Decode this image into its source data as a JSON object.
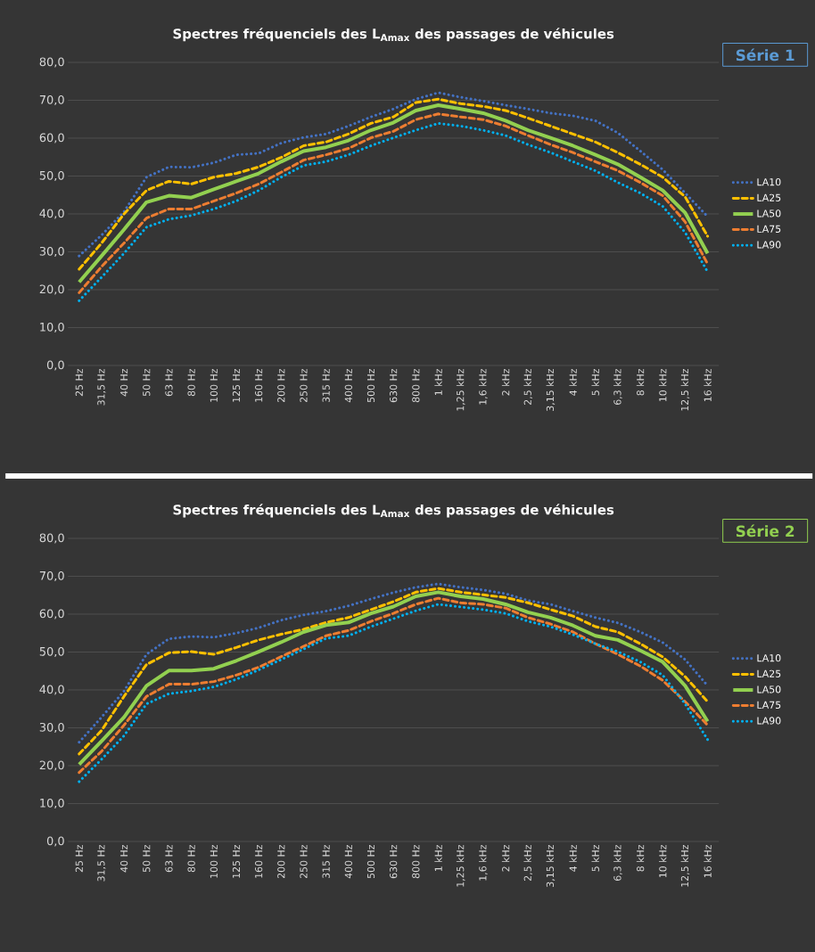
{
  "chart_data": [
    {
      "type": "line",
      "title": "Spectres fréquenciels des L$_{Amax}$ des passages de véhicules",
      "categories": [
        "25 Hz",
        "31,5 Hz",
        "40 Hz",
        "50 Hz",
        "63 Hz",
        "80 Hz",
        "100 Hz",
        "125 Hz",
        "160 Hz",
        "200 Hz",
        "250 Hz",
        "315 Hz",
        "400 Hz",
        "500 Hz",
        "630 Hz",
        "800 Hz",
        "1 kHz",
        "1,25 kHz",
        "1,6 kHz",
        "2 kHz",
        "2,5 kHz",
        "3,15 kHz",
        "4 kHz",
        "5 kHz",
        "6,3 kHz",
        "8 kHz",
        "10 kHz",
        "12,5 kHz",
        "16 kHz"
      ],
      "ylim": [
        0,
        80
      ],
      "yticks": [
        {
          "value": 0,
          "label": "0,0"
        },
        {
          "value": 10,
          "label": "10,0"
        },
        {
          "value": 20,
          "label": "20,0"
        },
        {
          "value": 30,
          "label": "30,0"
        },
        {
          "value": 40,
          "label": "40,0"
        },
        {
          "value": 50,
          "label": "50,0"
        },
        {
          "value": 60,
          "label": "60,0"
        },
        {
          "value": 70,
          "label": "70,0"
        },
        {
          "value": 80,
          "label": "80,0"
        }
      ],
      "grid": "y",
      "legend": "right",
      "annotations": [
        "Série 1"
      ],
      "series": [
        {
          "name": "LA10",
          "color": "#4472c4",
          "line_style": "dotted",
          "values": [
            28.9,
            34.4,
            40.6,
            49.7,
            52.4,
            52.3,
            53.5,
            55.6,
            56.0,
            58.7,
            60.2,
            61.1,
            63.2,
            65.6,
            67.7,
            70.3,
            72.0,
            70.8,
            69.8,
            68.7,
            67.7,
            66.6,
            65.9,
            64.6,
            61.4,
            56.6,
            51.7,
            45.5,
            39.3
          ]
        },
        {
          "name": "LA25",
          "color": "#ffc000",
          "line_style": "dashed",
          "values": [
            25.4,
            32.3,
            40.0,
            46.2,
            48.6,
            47.9,
            49.7,
            50.7,
            52.4,
            54.9,
            58.0,
            59.0,
            61.1,
            63.9,
            65.6,
            69.4,
            70.3,
            69.1,
            68.4,
            67.3,
            65.3,
            63.2,
            61.1,
            59.0,
            56.2,
            53.1,
            49.7,
            44.5,
            34.1
          ]
        },
        {
          "name": "LA50",
          "color": "#92d050",
          "line_style": "solid",
          "values": [
            22.0,
            28.9,
            35.9,
            43.1,
            44.8,
            44.3,
            46.5,
            48.6,
            50.7,
            53.8,
            56.6,
            57.6,
            59.4,
            62.1,
            64.1,
            67.3,
            68.7,
            67.7,
            66.6,
            64.6,
            62.1,
            60.1,
            58.0,
            55.6,
            53.1,
            49.7,
            46.2,
            40.3,
            29.6
          ]
        },
        {
          "name": "LA75",
          "color": "#ed7d31",
          "line_style": "dashed",
          "values": [
            19.2,
            26.1,
            32.3,
            38.9,
            41.3,
            41.3,
            43.4,
            45.5,
            47.9,
            51.0,
            54.2,
            55.6,
            57.3,
            60.1,
            61.8,
            64.9,
            66.4,
            65.6,
            64.9,
            63.2,
            60.7,
            58.3,
            56.2,
            53.8,
            51.4,
            48.3,
            44.8,
            37.9,
            26.8
          ]
        },
        {
          "name": "LA90",
          "color": "#00b0f0",
          "line_style": "dotted",
          "values": [
            17.1,
            23.3,
            29.6,
            36.5,
            38.6,
            39.6,
            41.3,
            43.4,
            46.2,
            49.7,
            52.8,
            53.8,
            55.6,
            58.0,
            60.1,
            62.1,
            63.9,
            63.2,
            62.1,
            60.7,
            58.3,
            56.2,
            53.8,
            51.4,
            48.3,
            45.5,
            42.0,
            35.1,
            24.7
          ]
        }
      ]
    },
    {
      "type": "line",
      "title": "Spectres fréquenciels des L$_{Amax}$ des passages de véhicules",
      "categories": [
        "25 Hz",
        "31,5 Hz",
        "40 Hz",
        "50 Hz",
        "63 Hz",
        "80 Hz",
        "100 Hz",
        "125 Hz",
        "160 Hz",
        "200 Hz",
        "250 Hz",
        "315 Hz",
        "400 Hz",
        "500 Hz",
        "630 Hz",
        "800 Hz",
        "1 kHz",
        "1,25 kHz",
        "1,6 kHz",
        "2 kHz",
        "2,5 kHz",
        "3,15 kHz",
        "4 kHz",
        "5 kHz",
        "6,3 kHz",
        "8 kHz",
        "10 kHz",
        "12,5 kHz",
        "16 kHz"
      ],
      "ylim": [
        0,
        80
      ],
      "yticks": [
        {
          "value": 0,
          "label": "0,0"
        },
        {
          "value": 10,
          "label": "10,0"
        },
        {
          "value": 20,
          "label": "20,0"
        },
        {
          "value": 30,
          "label": "30,0"
        },
        {
          "value": 40,
          "label": "40,0"
        },
        {
          "value": 50,
          "label": "50,0"
        },
        {
          "value": 60,
          "label": "60,0"
        },
        {
          "value": 70,
          "label": "70,0"
        },
        {
          "value": 80,
          "label": "80,0"
        }
      ],
      "grid": "y",
      "legend": "right",
      "annotations": [
        "Série 2"
      ],
      "series": [
        {
          "name": "LA10",
          "color": "#4472c4",
          "line_style": "dotted",
          "values": [
            26.2,
            32.8,
            39.7,
            49.4,
            53.5,
            54.1,
            53.9,
            55.0,
            56.4,
            58.4,
            59.8,
            60.8,
            62.2,
            64.0,
            65.7,
            67.1,
            68.0,
            67.1,
            66.4,
            65.4,
            63.6,
            62.6,
            60.8,
            59.1,
            57.7,
            55.3,
            52.5,
            48.0,
            41.1
          ]
        },
        {
          "name": "LA25",
          "color": "#ffc000",
          "line_style": "dashed",
          "values": [
            23.1,
            29.3,
            38.3,
            46.7,
            49.8,
            50.1,
            49.4,
            51.2,
            53.2,
            54.7,
            56.0,
            57.8,
            59.1,
            61.2,
            63.3,
            65.8,
            66.8,
            65.8,
            65.1,
            64.4,
            63.0,
            61.2,
            59.5,
            56.7,
            55.3,
            52.2,
            48.7,
            43.5,
            36.9
          ]
        },
        {
          "name": "LA50",
          "color": "#92d050",
          "line_style": "solid",
          "values": [
            20.3,
            26.5,
            32.8,
            41.1,
            45.1,
            45.1,
            45.6,
            47.7,
            50.1,
            52.6,
            55.3,
            57.1,
            57.8,
            60.2,
            62.0,
            64.7,
            65.8,
            64.7,
            64.0,
            62.6,
            60.5,
            59.1,
            57.0,
            54.3,
            53.2,
            50.4,
            47.4,
            41.1,
            31.7
          ]
        },
        {
          "name": "LA75",
          "color": "#ed7d31",
          "line_style": "dashed",
          "values": [
            18.2,
            23.8,
            30.7,
            38.3,
            41.5,
            41.5,
            42.2,
            43.9,
            46.0,
            48.8,
            51.5,
            54.3,
            55.7,
            58.1,
            60.2,
            62.6,
            64.2,
            63.0,
            62.6,
            61.6,
            59.1,
            57.4,
            55.3,
            52.2,
            49.4,
            46.3,
            42.5,
            36.9,
            30.7
          ]
        },
        {
          "name": "LA90",
          "color": "#00b0f0",
          "line_style": "dotted",
          "values": [
            15.8,
            21.7,
            27.9,
            36.3,
            39.0,
            39.7,
            40.8,
            42.8,
            45.3,
            48.0,
            50.8,
            53.6,
            54.3,
            56.7,
            58.8,
            60.9,
            62.6,
            61.9,
            61.2,
            60.2,
            58.1,
            56.7,
            54.6,
            52.2,
            50.1,
            47.4,
            43.9,
            36.3,
            26.9
          ]
        }
      ]
    }
  ]
}
